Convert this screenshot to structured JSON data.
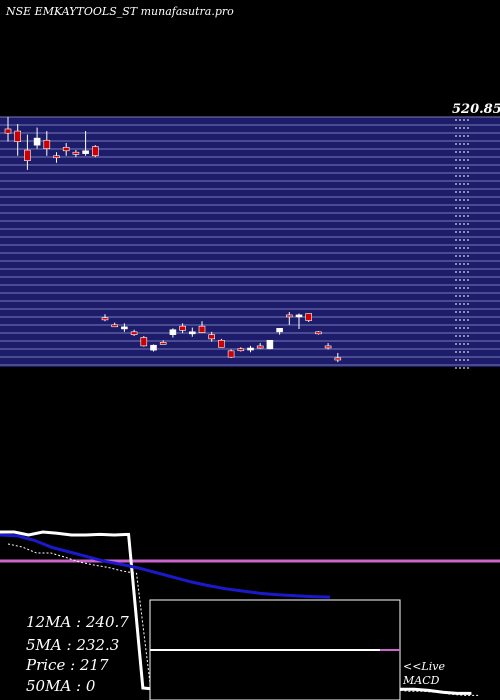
{
  "header": {
    "title": "NSE EMKAYTOOLS_ST munafasutra.pro"
  },
  "colors": {
    "background": "#000000",
    "price_panel": "#1c1c6b",
    "grid": "#7a7ab8",
    "up_candle": "#ffffff",
    "down_candle": "#cc0000",
    "price_line": "#ffffff",
    "ma_line": "#1a1acc",
    "signal_line": "#cc66cc",
    "macd_box": "#ffffff"
  },
  "chart_data": {
    "type": "candlestick",
    "price_label": "520.85",
    "candles": [
      {
        "o": 528,
        "h": 545,
        "l": 510,
        "c": 522
      },
      {
        "o": 525,
        "h": 535,
        "l": 490,
        "c": 510
      },
      {
        "o": 498,
        "h": 520,
        "l": 470,
        "c": 483
      },
      {
        "o": 505,
        "h": 530,
        "l": 500,
        "c": 515
      },
      {
        "o": 512,
        "h": 525,
        "l": 490,
        "c": 500
      },
      {
        "o": 490,
        "h": 495,
        "l": 480,
        "c": 488
      },
      {
        "o": 502,
        "h": 508,
        "l": 490,
        "c": 497
      },
      {
        "o": 495,
        "h": 498,
        "l": 488,
        "c": 492
      },
      {
        "o": 493,
        "h": 525,
        "l": 490,
        "c": 497
      },
      {
        "o": 503,
        "h": 505,
        "l": 488,
        "c": 490
      },
      {
        "o": 260,
        "h": 265,
        "l": 255,
        "c": 257
      },
      {
        "o": 250,
        "h": 253,
        "l": 247,
        "c": 248
      },
      {
        "o": 245,
        "h": 252,
        "l": 240,
        "c": 247
      },
      {
        "o": 240,
        "h": 243,
        "l": 234,
        "c": 236
      },
      {
        "o": 232,
        "h": 234,
        "l": 219,
        "c": 220
      },
      {
        "o": 214,
        "h": 222,
        "l": 212,
        "c": 221
      },
      {
        "o": 225,
        "h": 228,
        "l": 222,
        "c": 224
      },
      {
        "o": 236,
        "h": 245,
        "l": 232,
        "c": 243
      },
      {
        "o": 248,
        "h": 252,
        "l": 238,
        "c": 242
      },
      {
        "o": 239,
        "h": 246,
        "l": 233,
        "c": 240
      },
      {
        "o": 248,
        "h": 255,
        "l": 242,
        "c": 239
      },
      {
        "o": 236,
        "h": 240,
        "l": 226,
        "c": 230
      },
      {
        "o": 228,
        "h": 230,
        "l": 218,
        "c": 218
      },
      {
        "o": 213,
        "h": 215,
        "l": 203,
        "c": 204
      },
      {
        "o": 216,
        "h": 218,
        "l": 212,
        "c": 214
      },
      {
        "o": 216,
        "h": 220,
        "l": 211,
        "c": 217
      },
      {
        "o": 220,
        "h": 224,
        "l": 216,
        "c": 217
      },
      {
        "o": 216,
        "h": 228,
        "l": 215,
        "c": 228
      },
      {
        "o": 240,
        "h": 245,
        "l": 236,
        "c": 245
      },
      {
        "o": 264,
        "h": 268,
        "l": 250,
        "c": 262
      },
      {
        "o": 264,
        "h": 266,
        "l": 244,
        "c": 264
      },
      {
        "o": 266,
        "h": 266,
        "l": 254,
        "c": 256
      },
      {
        "o": 240,
        "h": 241,
        "l": 236,
        "c": 238
      },
      {
        "o": 220,
        "h": 224,
        "l": 215,
        "c": 218
      },
      {
        "o": 203,
        "h": 210,
        "l": 197,
        "c": 200
      }
    ],
    "ma_line_white": [
      660,
      660,
      655,
      660,
      658,
      655,
      655,
      656,
      655,
      656,
      400,
      398,
      398,
      397,
      396,
      396,
      397,
      396,
      396,
      397,
      396,
      396,
      395,
      395,
      396,
      398,
      400,
      401,
      398,
      398,
      396,
      393,
      391,
      391
    ],
    "ma_line_blue": [
      622,
      620,
      610,
      595,
      585,
      575,
      565,
      558,
      550,
      540,
      530,
      520,
      512,
      505,
      500,
      495,
      492,
      490,
      488,
      487
    ]
  },
  "stats": {
    "ma12": "12MA : 240.7",
    "ma5": "5MA : 232.3",
    "price": "Price   : 217",
    "ma50": "50MA : 0"
  },
  "macd": {
    "label_live": "<<Live",
    "label_macd": "MACD"
  }
}
